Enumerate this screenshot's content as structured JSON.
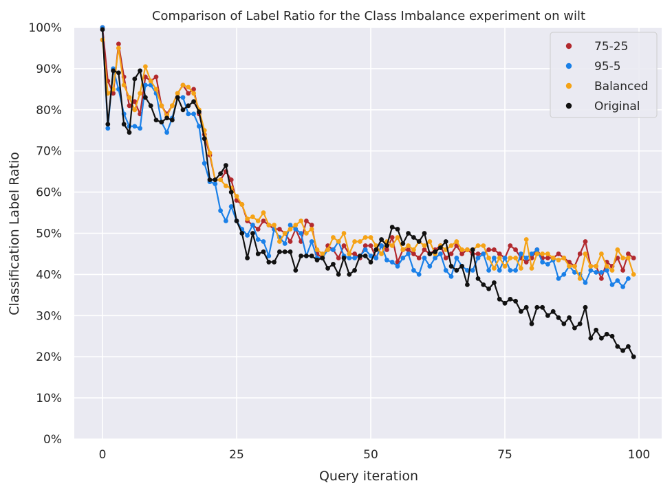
{
  "chart_data": {
    "type": "line",
    "title": "Comparison of Label Ratio for the Class Imbalance experiment on wilt",
    "xlabel": "Query iteration",
    "ylabel": "Classification Label Ratio",
    "xlim": [
      -5,
      101
    ],
    "ylim": [
      0,
      100
    ],
    "xticks": [
      0,
      25,
      50,
      75,
      100
    ],
    "xtick_labels": [
      "0",
      "25",
      "50",
      "75",
      "100"
    ],
    "yticks": [
      0,
      10,
      20,
      30,
      40,
      50,
      60,
      70,
      80,
      90,
      100
    ],
    "ytick_labels": [
      "0%",
      "10%",
      "20%",
      "30%",
      "40%",
      "50%",
      "60%",
      "70%",
      "80%",
      "90%",
      "100%"
    ],
    "grid": true,
    "legend_position": "top-right",
    "background": "#eaeaf2",
    "series": [
      {
        "name": "75-25",
        "color": "#b2292e",
        "values": [
          100,
          87,
          84,
          96,
          88,
          81,
          82,
          79,
          88,
          87,
          88,
          81,
          79,
          81,
          84,
          86,
          84,
          85,
          79,
          74,
          69,
          63,
          63,
          65,
          63,
          58,
          57,
          53,
          52,
          51,
          53,
          52,
          51,
          51,
          50,
          48,
          51,
          48,
          53,
          52,
          45,
          44,
          47,
          46,
          44,
          47,
          45,
          45,
          44,
          47,
          47,
          44,
          47,
          46,
          49,
          43,
          46,
          46,
          45,
          44,
          46,
          45,
          46,
          47,
          44,
          45,
          47,
          45,
          46,
          45,
          45,
          45,
          46,
          46,
          45,
          44,
          47,
          46,
          44,
          43,
          44,
          46,
          44,
          44,
          44,
          45,
          44,
          43,
          42,
          45,
          48,
          42,
          42,
          39,
          43,
          42,
          44,
          41,
          45,
          44
        ]
      },
      {
        "name": "95-5",
        "color": "#1a80e8",
        "values": [
          100,
          75.5,
          90,
          85,
          79,
          76,
          76,
          75.5,
          86,
          86,
          84,
          77,
          74.5,
          78,
          83,
          83,
          79,
          79,
          76,
          67,
          62.5,
          62,
          55.5,
          53,
          56.5,
          53,
          51,
          49.5,
          52,
          48.5,
          48,
          44.5,
          51,
          49,
          47.5,
          52,
          51,
          50,
          44.5,
          48,
          44,
          44,
          46,
          46,
          48,
          44.5,
          44,
          44,
          44.5,
          46,
          44.5,
          44,
          47,
          43.5,
          43,
          42,
          44,
          45,
          41,
          40,
          44,
          42,
          44,
          45,
          41,
          39.5,
          44,
          42,
          41,
          41,
          44,
          45,
          41,
          44,
          41,
          44,
          41,
          41,
          45,
          44,
          45,
          46,
          43,
          42.5,
          43.5,
          39,
          40,
          42,
          40.5,
          40,
          38,
          41,
          40.5,
          40.5,
          41,
          37.5,
          38.5,
          37,
          39
        ]
      },
      {
        "name": "Balanced",
        "color": "#f5a316",
        "values": [
          97,
          84,
          85,
          95,
          86,
          83,
          80,
          84,
          90.5,
          87,
          85,
          81,
          78.5,
          81,
          84,
          86,
          85.5,
          84,
          80,
          75,
          69.5,
          63,
          63,
          61.5,
          61,
          59,
          57,
          53.5,
          54,
          53,
          55,
          52,
          52,
          48,
          50,
          51,
          52,
          53,
          50,
          51,
          46,
          45,
          46,
          49,
          48,
          50,
          45,
          48,
          48,
          49,
          49,
          47,
          45,
          48,
          47,
          49,
          46,
          47,
          46,
          48,
          47,
          48,
          45,
          47,
          46,
          47,
          48,
          46,
          46,
          46,
          47,
          47,
          44,
          41.5,
          44,
          42,
          44,
          44,
          41.5,
          48.5,
          41.5,
          45,
          45,
          45,
          44,
          43.5,
          44,
          42,
          42,
          39,
          45,
          42,
          42,
          45,
          42,
          41,
          46,
          44,
          44,
          40
        ]
      },
      {
        "name": "Original",
        "color": "#111111",
        "values": [
          99.5,
          76.5,
          89.5,
          89,
          76.5,
          74.5,
          87.5,
          89.5,
          83,
          81,
          77.5,
          77,
          78,
          77.5,
          83,
          80,
          81,
          82,
          79.5,
          73,
          63,
          63,
          64.5,
          66.5,
          60,
          53,
          50,
          44,
          50,
          45,
          45.5,
          43,
          43,
          45.5,
          45.5,
          45.5,
          41,
          44.5,
          44.5,
          44.5,
          43.5,
          44,
          41.5,
          42.5,
          40,
          44,
          40,
          41,
          44.5,
          44.5,
          43,
          46,
          48.5,
          47,
          51.5,
          51,
          47.5,
          50,
          49,
          48,
          50,
          45,
          45.5,
          46.5,
          48,
          42,
          41,
          42,
          37.5,
          46,
          39,
          37.5,
          36.5,
          38,
          34,
          33,
          34,
          33.5,
          31,
          32,
          28,
          32,
          32,
          30,
          31,
          29.5,
          28,
          29.5,
          27,
          28,
          32,
          24.5,
          26.5,
          24.5,
          25.5,
          25,
          22.5,
          21.5,
          22.5,
          20
        ]
      }
    ]
  }
}
